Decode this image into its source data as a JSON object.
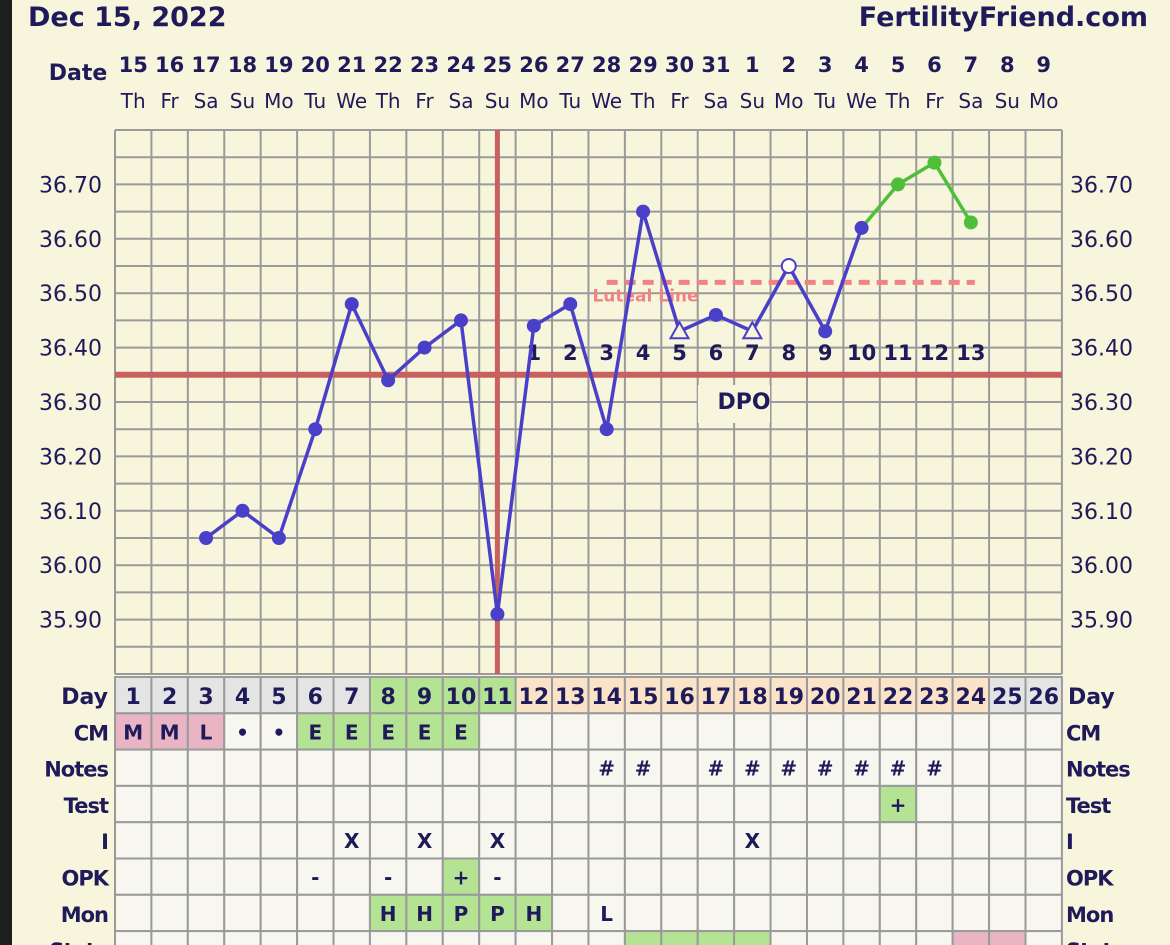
{
  "header": {
    "date": "Dec 15, 2022",
    "site": "FertilityFriend.com"
  },
  "labels": {
    "date": "Date",
    "day": "Day",
    "dpo": "DPO",
    "luteal": "Luteal Line"
  },
  "chart_data": {
    "type": "line",
    "dates": [
      "15",
      "16",
      "17",
      "18",
      "19",
      "20",
      "21",
      "22",
      "23",
      "24",
      "25",
      "26",
      "27",
      "28",
      "29",
      "30",
      "31",
      "1",
      "2",
      "3",
      "4",
      "5",
      "6",
      "7",
      "8",
      "9"
    ],
    "weekdays": [
      "Th",
      "Fr",
      "Sa",
      "Su",
      "Mo",
      "Tu",
      "We",
      "Th",
      "Fr",
      "Sa",
      "Su",
      "Mo",
      "Tu",
      "We",
      "Th",
      "Fr",
      "Sa",
      "Su",
      "Mo",
      "Tu",
      "We",
      "Th",
      "Fr",
      "Sa",
      "Su",
      "Mo"
    ],
    "cycle_days": [
      1,
      2,
      3,
      4,
      5,
      6,
      7,
      8,
      9,
      10,
      11,
      12,
      13,
      14,
      15,
      16,
      17,
      18,
      19,
      20,
      21,
      22,
      23,
      24,
      25,
      26
    ],
    "temps": [
      null,
      null,
      36.05,
      36.1,
      36.05,
      36.25,
      36.48,
      36.34,
      36.4,
      36.45,
      35.91,
      36.44,
      36.48,
      36.25,
      36.65,
      36.43,
      36.46,
      36.43,
      36.55,
      36.43,
      36.62,
      36.7,
      36.74,
      36.63,
      null,
      null
    ],
    "markers": [
      "",
      "",
      "dot",
      "dot",
      "dot",
      "dot",
      "dot",
      "dot",
      "dot",
      "dot",
      "dot",
      "dot",
      "dot",
      "dot",
      "dot",
      "triangle",
      "dot",
      "triangle",
      "open-circle",
      "dot",
      "dot",
      "dot",
      "dot",
      "dot",
      "",
      ""
    ],
    "green_from_day": 21,
    "yticks": [
      "36.70",
      "36.60",
      "36.50",
      "36.40",
      "36.30",
      "36.20",
      "36.10",
      "36.00",
      "35.90"
    ],
    "ylim": [
      35.8,
      36.8
    ],
    "grid": true,
    "coverline": 36.35,
    "ovulation_day": 11,
    "luteal_line": {
      "value": 36.52,
      "from_day": 14,
      "to_day": 24
    },
    "dpo": [
      "1",
      "2",
      "3",
      "4",
      "5",
      "6",
      "7",
      "8",
      "9",
      "10",
      "11",
      "12",
      "13"
    ],
    "dpo_start_day": 12,
    "colors": {
      "line": "#4a3fc8",
      "green": "#4fbf3a",
      "coverline": "#c8605f",
      "luteal": "#f08484",
      "grid": "#9a9a9a",
      "text": "#1f1a5a"
    }
  },
  "day_row_colors": [
    "#e4e4e4",
    "#e4e4e4",
    "#e4e4e4",
    "#e4e4e4",
    "#e4e4e4",
    "#e4e4e4",
    "#e4e4e4",
    "#b3e393",
    "#b3e393",
    "#b3e393",
    "#b3e393",
    "#fbe3c8",
    "#fbe3c8",
    "#fbe3c8",
    "#fbe3c8",
    "#fbe3c8",
    "#fbe3c8",
    "#fbe3c8",
    "#fbe3c8",
    "#fbe3c8",
    "#fbe3c8",
    "#fbe3c8",
    "#fbe3c8",
    "#fbe3c8",
    "#e4e4e4",
    "#e4e4e4"
  ],
  "rows": [
    {
      "label": "CM",
      "cells": [
        "M",
        "M",
        "L",
        "•",
        "•",
        "E",
        "E",
        "E",
        "E",
        "E",
        "",
        "",
        "",
        "",
        "",
        "",
        "",
        "",
        "",
        "",
        "",
        "",
        "",
        "",
        "",
        ""
      ],
      "colors": [
        "#e9b5c4",
        "#e9b5c4",
        "#e9b5c4",
        "",
        "",
        "#b3e393",
        "#b3e393",
        "#b3e393",
        "#b3e393",
        "#b3e393",
        "",
        "",
        "",
        "",
        "",
        "",
        "",
        "",
        "",
        "",
        "",
        "",
        "",
        "",
        "",
        ""
      ]
    },
    {
      "label": "Notes",
      "cells": [
        "",
        "",
        "",
        "",
        "",
        "",
        "",
        "",
        "",
        "",
        "",
        "",
        "",
        "#",
        "#",
        "",
        "#",
        "#",
        "#",
        "#",
        "#",
        "#",
        "#",
        "",
        "",
        ""
      ],
      "colors": []
    },
    {
      "label": "Test",
      "cells": [
        "",
        "",
        "",
        "",
        "",
        "",
        "",
        "",
        "",
        "",
        "",
        "",
        "",
        "",
        "",
        "",
        "",
        "",
        "",
        "",
        "",
        "+",
        "",
        "",
        "",
        ""
      ],
      "colors": [
        "",
        "",
        "",
        "",
        "",
        "",
        "",
        "",
        "",
        "",
        "",
        "",
        "",
        "",
        "",
        "",
        "",
        "",
        "",
        "",
        "",
        "#b3e393",
        "",
        "",
        "",
        ""
      ]
    },
    {
      "label": "I",
      "cells": [
        "",
        "",
        "",
        "",
        "",
        "",
        "X",
        "",
        "X",
        "",
        "X",
        "",
        "",
        "",
        "",
        "",
        "",
        "X",
        "",
        "",
        "",
        "",
        "",
        "",
        "",
        ""
      ],
      "colors": []
    },
    {
      "label": "OPK",
      "cells": [
        "",
        "",
        "",
        "",
        "",
        "-",
        "",
        "-",
        "",
        "+",
        "-",
        "",
        "",
        "",
        "",
        "",
        "",
        "",
        "",
        "",
        "",
        "",
        "",
        "",
        "",
        ""
      ],
      "colors": [
        "",
        "",
        "",
        "",
        "",
        "",
        "",
        "",
        "",
        "#b3e393",
        "",
        "",
        "",
        "",
        "",
        "",
        "",
        "",
        "",
        "",
        "",
        "",
        "",
        "",
        "",
        ""
      ]
    },
    {
      "label": "Mon",
      "cells": [
        "",
        "",
        "",
        "",
        "",
        "",
        "",
        "H",
        "H",
        "P",
        "P",
        "H",
        "",
        "L",
        "",
        "",
        "",
        "",
        "",
        "",
        "",
        "",
        "",
        "",
        "",
        ""
      ],
      "colors": [
        "",
        "",
        "",
        "",
        "",
        "",
        "",
        "#b3e393",
        "#b3e393",
        "#b3e393",
        "#b3e393",
        "#b3e393",
        "",
        "",
        "",
        "",
        "",
        "",
        "",
        "",
        "",
        "",
        "",
        "",
        "",
        ""
      ]
    },
    {
      "label": "State",
      "cells": [
        "",
        "",
        "",
        "",
        "",
        "",
        "",
        "",
        "",
        "",
        "",
        "",
        "",
        "",
        "",
        "",
        "",
        "",
        "",
        "",
        "",
        "",
        "",
        "",
        "",
        ""
      ],
      "colors": [
        "",
        "",
        "",
        "",
        "",
        "",
        "",
        "",
        "",
        "",
        "",
        "",
        "",
        "",
        "#b3e393",
        "#b3e393",
        "#b3e393",
        "#b3e393",
        "",
        "",
        "",
        "",
        "",
        "#e9b5c4",
        "#e9b5c4",
        ""
      ]
    }
  ]
}
